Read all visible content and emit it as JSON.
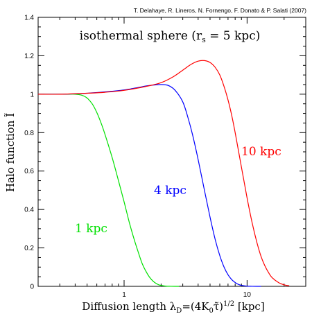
{
  "chart_data": {
    "type": "line",
    "credit": "T. Delahaye, R. Lineros, N. Fornengo, F. Donato & P. Salati (2007)",
    "title": "isothermal sphere (r",
    "title_sub": "s",
    "title_end": " = 5 kpc)",
    "xlabel_a": "Diffusion length λ",
    "xlabel_sub": "D",
    "xlabel_b": "=(4K",
    "xlabel_sub2": "0",
    "xlabel_c": "τ̃)",
    "xlabel_sup": "1/2",
    "xlabel_d": "  [kpc]",
    "ylabel": "Halo function Ĩ",
    "x_scale": "log",
    "xlim": [
      0.2,
      30
    ],
    "ylim": [
      0,
      1.4
    ],
    "x_ticks": [
      1,
      10
    ],
    "x_tick_labels": [
      "1",
      "10"
    ],
    "y_ticks": [
      0,
      0.2,
      0.4,
      0.6,
      0.8,
      1,
      1.2,
      1.4
    ],
    "y_tick_labels": [
      "0",
      "0.2",
      "0.4",
      "0.6",
      "0.8",
      "1",
      "1.2",
      "1.4"
    ],
    "series": [
      {
        "name": "1 kpc",
        "color": "#00e000",
        "x": [
          0.2,
          0.25,
          0.3,
          0.35,
          0.4,
          0.45,
          0.5,
          0.55,
          0.6,
          0.65,
          0.7,
          0.8,
          0.9,
          1.0,
          1.1,
          1.2,
          1.3,
          1.4,
          1.5,
          1.6,
          1.7,
          1.8,
          1.9,
          2.0,
          2.2,
          2.4,
          2.6,
          2.8
        ],
        "y": [
          1.0,
          1.0,
          1.0,
          1.0,
          1.0,
          0.995,
          0.98,
          0.95,
          0.905,
          0.85,
          0.79,
          0.67,
          0.55,
          0.44,
          0.335,
          0.25,
          0.18,
          0.12,
          0.08,
          0.05,
          0.03,
          0.017,
          0.009,
          0.005,
          0.001,
          0.0003,
          0.0,
          0.0
        ]
      },
      {
        "name": "4 kpc",
        "color": "#0000ff",
        "x": [
          0.2,
          0.3,
          0.4,
          0.5,
          0.7,
          1.0,
          1.3,
          1.6,
          2.0,
          2.3,
          2.6,
          3.0,
          3.3,
          3.6,
          4.0,
          4.5,
          5.0,
          5.5,
          6.0,
          6.5,
          7.0,
          7.5,
          8.0,
          8.5,
          9.0,
          10.0,
          11.0,
          12.0,
          13.0
        ],
        "y": [
          1.0,
          1.0,
          1.002,
          1.005,
          1.012,
          1.022,
          1.035,
          1.045,
          1.05,
          1.045,
          1.02,
          0.96,
          0.88,
          0.79,
          0.66,
          0.5,
          0.36,
          0.245,
          0.16,
          0.1,
          0.06,
          0.035,
          0.02,
          0.01,
          0.005,
          0.001,
          0.0003,
          0.0,
          0.0
        ]
      },
      {
        "name": "10 kpc",
        "color": "#ff0000",
        "x": [
          0.2,
          0.3,
          0.5,
          0.7,
          1.0,
          1.5,
          2.0,
          2.5,
          3.0,
          3.5,
          4.0,
          4.5,
          5.0,
          5.5,
          6.0,
          6.5,
          7.0,
          7.5,
          8.0,
          9.0,
          10.0,
          11.0,
          12.0,
          13.0,
          14.0,
          15.0,
          16.0,
          18.0,
          20.0,
          22.0
        ],
        "y": [
          1.0,
          1.0,
          1.005,
          1.01,
          1.02,
          1.04,
          1.06,
          1.09,
          1.125,
          1.155,
          1.172,
          1.175,
          1.165,
          1.14,
          1.1,
          1.04,
          0.97,
          0.89,
          0.8,
          0.62,
          0.46,
          0.33,
          0.23,
          0.155,
          0.105,
          0.07,
          0.045,
          0.02,
          0.008,
          0.003
        ]
      }
    ]
  }
}
